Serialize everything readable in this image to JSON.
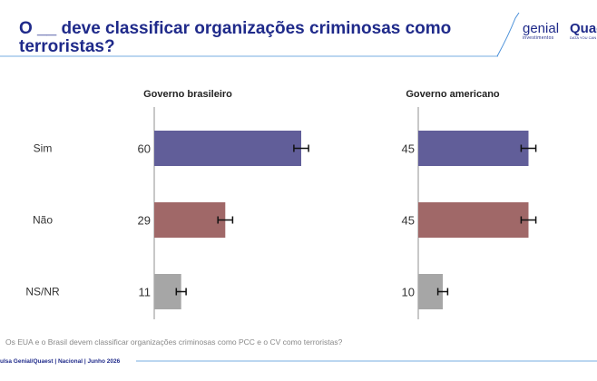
{
  "title": "O __ deve classificar organizações criminosas como terroristas?",
  "logos": {
    "genial": "genial",
    "genial_sub": "investimentos",
    "quaest": "Quaest",
    "quaest_sub": "DATA YOU CAN TRUST"
  },
  "footer": {
    "question": "Os EUA e o Brasil devem classificar organizações criminosas como PCC e o CV como terroristas?",
    "source": "ulsa Genial/Quaest | Nacional | Junho 2026"
  },
  "colors": {
    "title": "#1f2a8a",
    "sim": "#615e99",
    "nao": "#a06868",
    "nsnr": "#a6a6a6",
    "axis": "#c8c8c8",
    "accent_line": "#4a90d9"
  },
  "chart_data": {
    "type": "bar",
    "orientation": "horizontal",
    "categories": [
      "Sim",
      "Não",
      "NS/NR"
    ],
    "xlim": [
      0,
      100
    ],
    "panels": [
      {
        "title": "Governo brasileiro",
        "values": [
          60,
          29,
          11
        ],
        "error": [
          3,
          3,
          2
        ]
      },
      {
        "title": "Governo americano",
        "values": [
          45,
          45,
          10
        ],
        "error": [
          3,
          3,
          2
        ]
      }
    ],
    "error_bars": true,
    "grid": false
  }
}
